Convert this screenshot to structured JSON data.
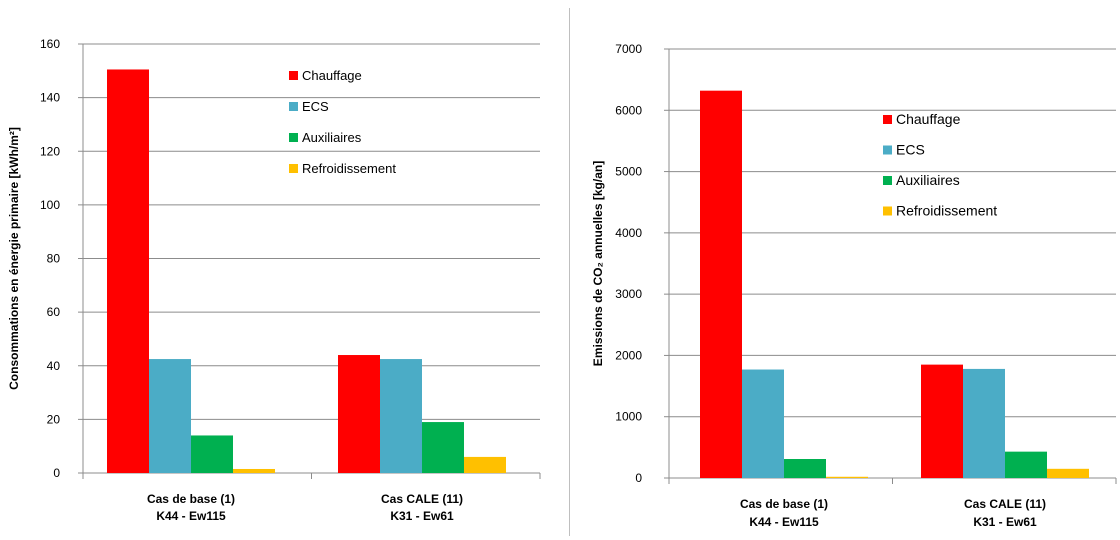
{
  "chart_data": [
    {
      "type": "bar",
      "categories": [
        [
          "Cas de base (1)",
          "K44 - Ew115"
        ],
        [
          "Cas CALE (11)",
          "K31 - Ew61"
        ]
      ],
      "ylabel": "Consommations en énergie primaire [kWh/m²]",
      "ylim": [
        0,
        160
      ],
      "yticks": [
        0,
        20,
        40,
        60,
        80,
        100,
        120,
        140,
        160
      ],
      "grid": true,
      "legend_position": "top-right",
      "series": [
        {
          "name": "Chauffage",
          "color": "#ff0000",
          "values": [
            150.5,
            44
          ]
        },
        {
          "name": "ECS",
          "color": "#4bacc6",
          "values": [
            42.5,
            42.5
          ]
        },
        {
          "name": "Auxiliaires",
          "color": "#00b050",
          "values": [
            14,
            19
          ]
        },
        {
          "name": "Refroidissement",
          "color": "#ffc000",
          "values": [
            1.5,
            6
          ]
        }
      ]
    },
    {
      "type": "bar",
      "categories": [
        [
          "Cas de base (1)",
          "K44 - Ew115"
        ],
        [
          "Cas CALE (11)",
          "K31 - Ew61"
        ]
      ],
      "ylabel": "Emissions de CO₂ annuelles [kg/an]",
      "ylim": [
        0,
        7000
      ],
      "yticks": [
        0,
        1000,
        2000,
        3000,
        4000,
        5000,
        6000,
        7000
      ],
      "grid": true,
      "legend_position": "top-right",
      "series": [
        {
          "name": "Chauffage",
          "color": "#ff0000",
          "values": [
            6320,
            1850
          ]
        },
        {
          "name": "ECS",
          "color": "#4bacc6",
          "values": [
            1770,
            1780
          ]
        },
        {
          "name": "Auxiliaires",
          "color": "#00b050",
          "values": [
            310,
            430
          ]
        },
        {
          "name": "Refroidissement",
          "color": "#ffc000",
          "values": [
            20,
            150
          ]
        }
      ]
    }
  ]
}
